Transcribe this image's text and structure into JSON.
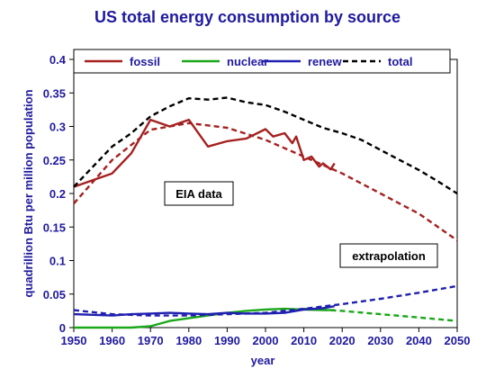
{
  "colors": {
    "title": "#1f1a9e",
    "axis_text": "#1f1a9e",
    "fossil": "#a5201f",
    "nuclear": "#1aa81a",
    "renew": "#2020b0",
    "total": "#000000"
  },
  "chart_data": {
    "type": "line",
    "title": "US total energy consumption by source",
    "xlabel": "year",
    "ylabel": "quadrillion  Btu per million population",
    "xlim": [
      1950,
      2050
    ],
    "ylim": [
      0,
      0.4
    ],
    "xticks": [
      "1950",
      "1960",
      "1970",
      "1980",
      "1990",
      "2000",
      "2010",
      "2020",
      "2030",
      "2040",
      "2050"
    ],
    "yticks": [
      "0",
      "0.05",
      "0.1",
      "0.15",
      "0.2",
      "0.25",
      "0.3",
      "0.35",
      "0.4"
    ],
    "legend_position": "top",
    "annotations": [
      "EIA data",
      "extrapolation"
    ],
    "series": [
      {
        "name": "fossil",
        "color_key": "fossil",
        "style": "solid",
        "x": [
          1950,
          1955,
          1960,
          1965,
          1970,
          1975,
          1980,
          1985,
          1990,
          1995,
          2000,
          2002,
          2005,
          2007,
          2008,
          2010,
          2012,
          2014,
          2015,
          2017,
          2018
        ],
        "y": [
          0.21,
          0.22,
          0.23,
          0.26,
          0.31,
          0.3,
          0.31,
          0.27,
          0.278,
          0.282,
          0.296,
          0.285,
          0.29,
          0.275,
          0.285,
          0.25,
          0.255,
          0.24,
          0.245,
          0.236,
          0.245
        ]
      },
      {
        "name": "fossil",
        "color_key": "fossil",
        "style": "dashed",
        "role": "extrapolation",
        "x": [
          1950,
          1960,
          1970,
          1980,
          1990,
          2000,
          2010,
          2020,
          2030,
          2040,
          2050
        ],
        "y": [
          0.185,
          0.25,
          0.295,
          0.305,
          0.298,
          0.28,
          0.255,
          0.23,
          0.2,
          0.17,
          0.13
        ]
      },
      {
        "name": "nuclear",
        "color_key": "nuclear",
        "style": "solid",
        "x": [
          1950,
          1957,
          1965,
          1970,
          1975,
          1980,
          1985,
          1990,
          1995,
          2000,
          2005,
          2010,
          2015,
          2018
        ],
        "y": [
          0,
          0,
          0,
          0.002,
          0.01,
          0.014,
          0.018,
          0.022,
          0.025,
          0.027,
          0.028,
          0.027,
          0.026,
          0.026
        ]
      },
      {
        "name": "nuclear",
        "color_key": "nuclear",
        "style": "dashed",
        "role": "extrapolation",
        "x": [
          2010,
          2020,
          2030,
          2040,
          2050
        ],
        "y": [
          0.028,
          0.025,
          0.02,
          0.015,
          0.01
        ]
      },
      {
        "name": "renew",
        "color_key": "renew",
        "style": "solid",
        "x": [
          1950,
          1955,
          1960,
          1965,
          1970,
          1975,
          1980,
          1985,
          1990,
          1995,
          2000,
          2005,
          2010,
          2015,
          2018
        ],
        "y": [
          0.02,
          0.019,
          0.018,
          0.02,
          0.021,
          0.022,
          0.021,
          0.02,
          0.022,
          0.021,
          0.021,
          0.022,
          0.027,
          0.029,
          0.032
        ]
      },
      {
        "name": "renew",
        "color_key": "renew",
        "style": "dashed",
        "role": "extrapolation",
        "x": [
          1950,
          1960,
          1970,
          1980,
          1990,
          2000,
          2010,
          2020,
          2030,
          2040,
          2050
        ],
        "y": [
          0.026,
          0.02,
          0.018,
          0.018,
          0.02,
          0.022,
          0.028,
          0.035,
          0.043,
          0.052,
          0.062
        ]
      },
      {
        "name": "total",
        "color_key": "total",
        "style": "dashed",
        "x": [
          1950,
          1955,
          1960,
          1965,
          1970,
          1975,
          1980,
          1985,
          1990,
          1995,
          2000,
          2005,
          2010,
          2015,
          2020,
          2025,
          2030,
          2035,
          2040,
          2045,
          2050
        ],
        "y": [
          0.21,
          0.24,
          0.27,
          0.29,
          0.315,
          0.33,
          0.342,
          0.34,
          0.343,
          0.336,
          0.332,
          0.322,
          0.31,
          0.298,
          0.29,
          0.28,
          0.265,
          0.25,
          0.235,
          0.218,
          0.2
        ]
      }
    ],
    "legend": [
      {
        "name": "fossil",
        "color_key": "fossil",
        "style": "solid"
      },
      {
        "name": "nuclear",
        "color_key": "nuclear",
        "style": "solid"
      },
      {
        "name": "renew",
        "color_key": "renew",
        "style": "solid"
      },
      {
        "name": "total",
        "color_key": "total",
        "style": "dashed"
      }
    ]
  }
}
